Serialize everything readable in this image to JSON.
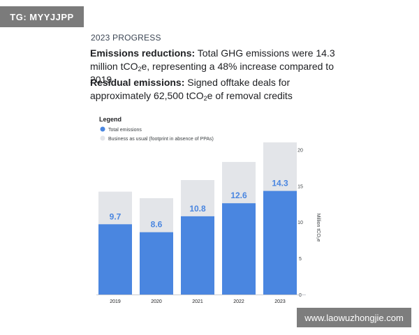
{
  "watermarks": {
    "top_left": "TG: MYYJJPP",
    "bottom_right": "www.laowuzhongjie.com"
  },
  "header": {
    "kicker": "2023 PROGRESS"
  },
  "paragraphs": {
    "emissions": {
      "label": "Emissions reductions:",
      "text_a": " Total GHG emissions were 14.3 million tCO",
      "sub": "2",
      "text_b": "e, representing a 48% increase compared to 2019"
    },
    "residual": {
      "label": "Residual emissions:",
      "text_a": " Signed offtake deals for approximately 62,500 tCO",
      "sub": "2",
      "text_b": "e of removal credits"
    }
  },
  "chart_data": {
    "type": "bar",
    "stacked": false,
    "overlay": true,
    "legend": {
      "title": "Legend",
      "placement": "top-left"
    },
    "categories": [
      "2019",
      "2020",
      "2021",
      "2022",
      "2023"
    ],
    "series": [
      {
        "name": "Total emissions",
        "color": "#4a86e0",
        "values": [
          9.7,
          8.6,
          10.8,
          12.6,
          14.3
        ],
        "data_labels": [
          "9.7",
          "8.6",
          "10.8",
          "12.6",
          "14.3"
        ]
      },
      {
        "name": "Business as usual (footprint in absence of PPAs)",
        "color": "#e3e5e9",
        "values": [
          14.2,
          13.3,
          15.8,
          18.3,
          21.0
        ]
      }
    ],
    "y_axis": {
      "label": "Million tCO₂e",
      "ticks": [
        "0",
        "5",
        "10",
        "15",
        "20"
      ],
      "ylim": [
        0,
        22
      ],
      "position": "right"
    },
    "xlabel": "",
    "grid": false
  }
}
